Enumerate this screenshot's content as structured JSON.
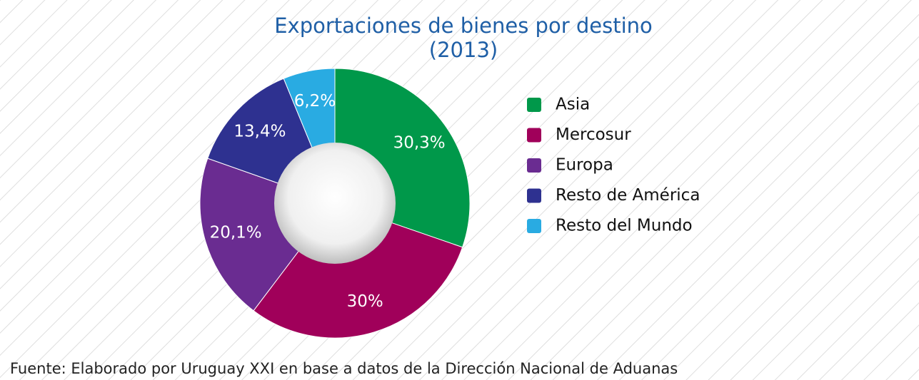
{
  "chart_data": {
    "type": "pie",
    "title": "Exportaciones de bienes por destino",
    "subtitle": "(2013)",
    "categories": [
      "Asia",
      "Mercosur",
      "Europa",
      "Resto de América",
      "Resto del Mundo"
    ],
    "values": [
      30.3,
      30,
      20.1,
      13.4,
      6.2
    ],
    "value_labels": [
      "30,3%",
      "30%",
      "20,1%",
      "13,4%",
      "6,2%"
    ],
    "colors": [
      "#00984a",
      "#a0005a",
      "#6a2c91",
      "#2e3190",
      "#29abe2"
    ],
    "legend": "right",
    "source": "Fuente: Elaborado por Uruguay XXI en base a datos de la Dirección Nacional de Aduanas"
  }
}
